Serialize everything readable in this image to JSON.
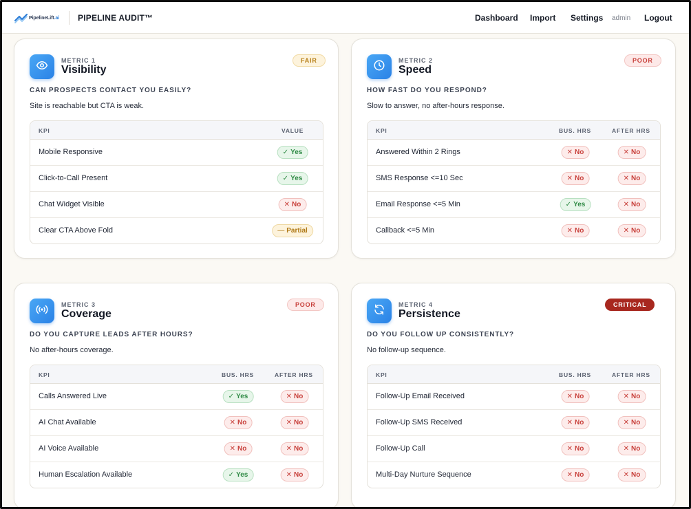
{
  "header": {
    "logo_text": "Pipeline",
    "logo_text_bold": "Lift",
    "logo_text_suffix": ".ai",
    "app_title": "PIPELINE AUDIT™",
    "nav": [
      "Dashboard",
      "Import",
      "Settings"
    ],
    "user": "admin",
    "logout": "Logout"
  },
  "colors": {
    "accent": "#2b82e6",
    "yes": "#2f8a45",
    "no": "#c8413c",
    "partial": "#b07a17",
    "critical": "#a8281f"
  },
  "cards": [
    {
      "metric_label": "METRIC 1",
      "name": "Visibility",
      "icon": "eye-icon",
      "rating": "FAIR",
      "question": "CAN PROSPECTS CONTACT YOU EASILY?",
      "summary": "Site is reachable but CTA is weak.",
      "columns": [
        "KPI",
        "VALUE"
      ],
      "rows": [
        {
          "kpi": "Mobile Responsive",
          "value": "Yes"
        },
        {
          "kpi": "Click-to-Call Present",
          "value": "Yes"
        },
        {
          "kpi": "Chat Widget Visible",
          "value": "No"
        },
        {
          "kpi": "Clear CTA Above Fold",
          "value": "Partial"
        }
      ]
    },
    {
      "metric_label": "METRIC 2",
      "name": "Speed",
      "icon": "clock-icon",
      "rating": "POOR",
      "question": "HOW FAST DO YOU RESPOND?",
      "summary": "Slow to answer, no after-hours response.",
      "columns": [
        "KPI",
        "BUS. HRS",
        "AFTER HRS"
      ],
      "rows": [
        {
          "kpi": "Answered Within 2 Rings",
          "bus": "No",
          "after": "No"
        },
        {
          "kpi": "SMS Response <=10 Sec",
          "bus": "No",
          "after": "No"
        },
        {
          "kpi": "Email Response <=5 Min",
          "bus": "Yes",
          "after": "No"
        },
        {
          "kpi": "Callback <=5 Min",
          "bus": "No",
          "after": "No"
        }
      ]
    },
    {
      "metric_label": "METRIC 3",
      "name": "Coverage",
      "icon": "broadcast-icon",
      "rating": "POOR",
      "question": "DO YOU CAPTURE LEADS AFTER HOURS?",
      "summary": "No after-hours coverage.",
      "columns": [
        "KPI",
        "BUS. HRS",
        "AFTER HRS"
      ],
      "rows": [
        {
          "kpi": "Calls Answered Live",
          "bus": "Yes",
          "after": "No"
        },
        {
          "kpi": "AI Chat Available",
          "bus": "No",
          "after": "No"
        },
        {
          "kpi": "AI Voice Available",
          "bus": "No",
          "after": "No"
        },
        {
          "kpi": "Human Escalation Available",
          "bus": "Yes",
          "after": "No"
        }
      ]
    },
    {
      "metric_label": "METRIC 4",
      "name": "Persistence",
      "icon": "refresh-icon",
      "rating": "CRITICAL",
      "question": "DO YOU FOLLOW UP CONSISTENTLY?",
      "summary": "No follow-up sequence.",
      "columns": [
        "KPI",
        "BUS. HRS",
        "AFTER HRS"
      ],
      "rows": [
        {
          "kpi": "Follow-Up Email Received",
          "bus": "No",
          "after": "No"
        },
        {
          "kpi": "Follow-Up SMS Received",
          "bus": "No",
          "after": "No"
        },
        {
          "kpi": "Follow-Up Call",
          "bus": "No",
          "after": "No"
        },
        {
          "kpi": "Multi-Day Nurture Sequence",
          "bus": "No",
          "after": "No"
        }
      ]
    }
  ]
}
